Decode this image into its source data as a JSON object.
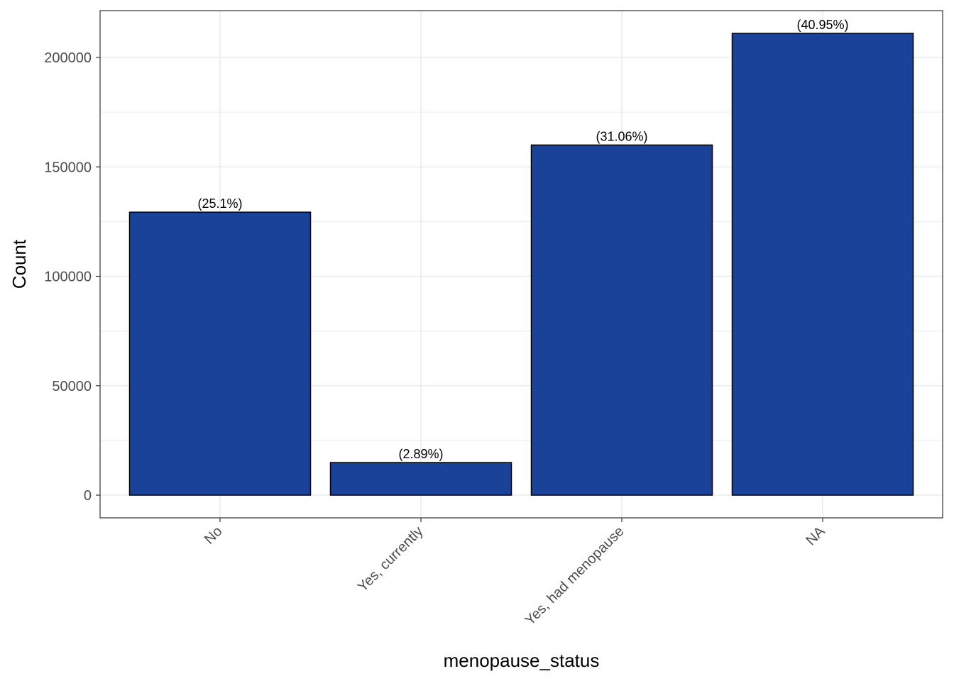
{
  "chart_data": {
    "type": "bar",
    "title": "",
    "xlabel": "menopause_status",
    "ylabel": "Count",
    "categories": [
      "No",
      "Yes, currently",
      "Yes, had menopause",
      "NA"
    ],
    "values": [
      129300,
      14900,
      160000,
      211000
    ],
    "data_labels": [
      "(25.1%)",
      "(2.89%)",
      "(31.06%)",
      "(40.95%)"
    ],
    "ylim": [
      0,
      221000
    ],
    "yticks": [
      0,
      50000,
      100000,
      150000,
      200000
    ],
    "ytick_labels": [
      "0",
      "50000",
      "100000",
      "150000",
      "200000"
    ],
    "grid": true,
    "legend": "none",
    "x_tick_rotation": "45 degrees",
    "colors": {
      "bar_fill": "#1a4299",
      "bar_outline": "#000000",
      "grid": "#ebebeb",
      "panel_border": "#333333"
    }
  }
}
